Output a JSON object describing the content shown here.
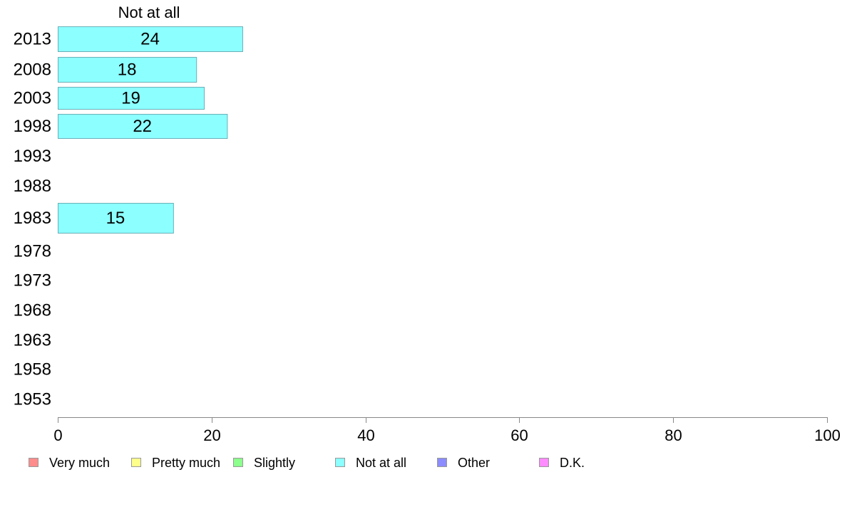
{
  "chart_data": {
    "type": "bar",
    "orientation": "horizontal",
    "header": "Not at all",
    "categories": [
      "2013",
      "2008",
      "2003",
      "1998",
      "1993",
      "1988",
      "1983",
      "1978",
      "1973",
      "1968",
      "1963",
      "1958",
      "1953"
    ],
    "series": [
      {
        "name": "Very much",
        "values": [
          null,
          null,
          null,
          null,
          null,
          null,
          null,
          null,
          null,
          null,
          null,
          null,
          null
        ],
        "color": "#ff8c8c"
      },
      {
        "name": "Pretty much",
        "values": [
          null,
          null,
          null,
          null,
          null,
          null,
          null,
          null,
          null,
          null,
          null,
          null,
          null
        ],
        "color": "#ffff8c"
      },
      {
        "name": "Slightly",
        "values": [
          null,
          null,
          null,
          null,
          null,
          null,
          null,
          null,
          null,
          null,
          null,
          null,
          null
        ],
        "color": "#8cff8c"
      },
      {
        "name": "Not at all",
        "values": [
          24,
          18,
          19,
          22,
          null,
          null,
          15,
          null,
          null,
          null,
          null,
          null,
          null
        ],
        "color": "#8cffff"
      },
      {
        "name": "Other",
        "values": [
          null,
          null,
          null,
          null,
          null,
          null,
          null,
          null,
          null,
          null,
          null,
          null,
          null
        ],
        "color": "#8c8cff"
      },
      {
        "name": "D.K.",
        "values": [
          null,
          null,
          null,
          null,
          null,
          null,
          null,
          null,
          null,
          null,
          null,
          null,
          null
        ],
        "color": "#ff8cff"
      }
    ],
    "xlim": [
      0,
      100
    ],
    "xticks": [
      0,
      20,
      40,
      60,
      80,
      100
    ],
    "grid": false,
    "legend_position": "bottom"
  }
}
